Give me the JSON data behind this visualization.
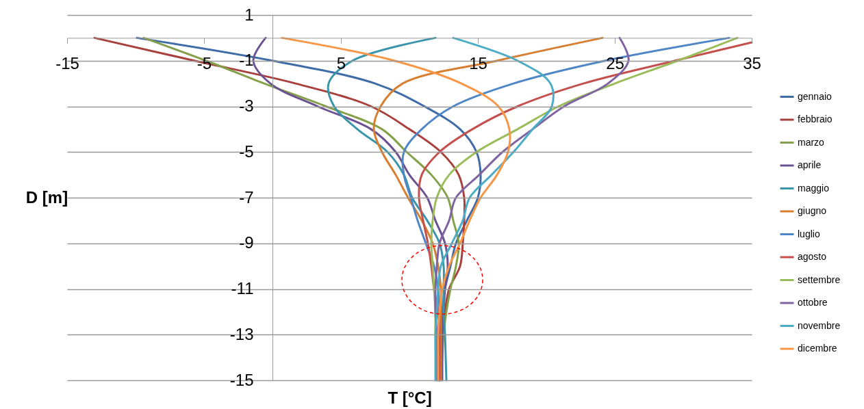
{
  "chart_data": {
    "type": "line",
    "xlabel": "T [°C]",
    "ylabel": "D [m]",
    "xlim": [
      -15,
      35
    ],
    "xticks": [
      -15,
      -5,
      5,
      15,
      25,
      35
    ],
    "ylim": [
      -15,
      1
    ],
    "yticks": [
      1,
      -1,
      -3,
      -5,
      -7,
      -9,
      -11,
      -13,
      -15
    ],
    "grid": "y",
    "legend": "right",
    "series": [
      {
        "name": "gennaio",
        "color": "#3f6ba7",
        "x": [
          -9.9,
          0,
          7.5,
          11.1,
          13.7,
          14.9,
          15.2,
          15.0,
          14.2,
          13.4,
          13.0,
          12.6,
          12.4,
          12.3,
          12.2,
          12.2
        ],
        "values": [
          0,
          -1,
          -2,
          -3,
          -4,
          -5,
          -6,
          -7,
          -8,
          -9,
          -10,
          -11,
          -12,
          -13,
          -14,
          -15
        ]
      },
      {
        "name": "febbraio",
        "color": "#a8403d",
        "x": [
          -13,
          -5.7,
          1.7,
          7.2,
          10.0,
          12.3,
          13.6,
          14.0,
          14.0,
          13.9,
          13.7,
          12.9,
          12.6,
          12.4,
          12.3,
          12.2
        ],
        "values": [
          0,
          -1,
          -2,
          -3,
          -4,
          -5,
          -6,
          -7,
          -8,
          -9,
          -10,
          -11,
          -12,
          -13,
          -14,
          -15
        ]
      },
      {
        "name": "marzo",
        "color": "#84a04a",
        "x": [
          -9.4,
          -4.85,
          -0.6,
          3.9,
          8.0,
          9.8,
          11.6,
          12.8,
          13.2,
          13.6,
          13.4,
          13.0,
          12.7,
          12.5,
          12.4,
          12.3
        ],
        "values": [
          0,
          -1,
          -2,
          -3,
          -4,
          -5,
          -6,
          -7,
          -8,
          -9,
          -10,
          -11,
          -12,
          -13,
          -14,
          -15
        ]
      },
      {
        "name": "aprile",
        "color": "#6a5191",
        "x": [
          -0.5,
          -1.4,
          -0.15,
          3.3,
          7.2,
          9.0,
          10.0,
          11.3,
          11.9,
          12.6,
          12.8,
          12.6,
          12.5,
          12.4,
          12.4,
          12.4
        ],
        "values": [
          0,
          -1,
          -2,
          -3,
          -4,
          -5,
          -6,
          -7,
          -8,
          -9,
          -10,
          -11,
          -12,
          -13,
          -14,
          -15
        ]
      },
      {
        "name": "maggio",
        "color": "#3a95ab",
        "x": [
          11.9,
          5.85,
          4.1,
          4.5,
          6.2,
          8.4,
          9.6,
          10.2,
          11.3,
          12.2,
          12.5,
          12.5,
          12.5,
          12.6,
          12.65,
          12.7
        ],
        "values": [
          0,
          -1,
          -2,
          -3,
          -4,
          -5,
          -6,
          -7,
          -8,
          -9,
          -10,
          -11,
          -12,
          -13,
          -14,
          -15
        ]
      },
      {
        "name": "giugno",
        "color": "#d67f30",
        "x": [
          24.1,
          16.4,
          9.5,
          7.9,
          7.4,
          8.0,
          9.0,
          9.9,
          10.9,
          11.7,
          12.1,
          12.3,
          12.3,
          12.3,
          12.3,
          12.3
        ],
        "values": [
          0,
          -1,
          -2,
          -3,
          -4,
          -5,
          -6,
          -7,
          -8,
          -9,
          -10,
          -11,
          -12,
          -13,
          -14,
          -15
        ]
      },
      {
        "name": "luglio",
        "color": "#4f86c6",
        "x": [
          33.35,
          24.3,
          17.6,
          13.2,
          10.9,
          9.6,
          9.6,
          10.1,
          10.6,
          11.2,
          11.8,
          12.1,
          12.2,
          12.2,
          12.2,
          12.1
        ],
        "values": [
          0,
          -1,
          -2,
          -3,
          -4,
          -5,
          -6,
          -7,
          -8,
          -9,
          -10,
          -11,
          -12,
          -13,
          -14,
          -15
        ]
      },
      {
        "name": "agosto",
        "color": "#c4504d",
        "x": [
          35,
          29.4,
          22.7,
          17.9,
          14.6,
          12.2,
          10.9,
          10.7,
          11.0,
          11.35,
          11.6,
          11.8,
          12.1,
          12.2,
          12.2,
          12.2
        ],
        "values": [
          -0.2,
          -1,
          -2,
          -3,
          -4,
          -5,
          -6,
          -7,
          -8,
          -9,
          -10,
          -11,
          -12,
          -13,
          -14,
          -15
        ]
      },
      {
        "name": "settembre",
        "color": "#9bbd59",
        "x": [
          33.95,
          29.6,
          25.0,
          20.9,
          17.9,
          14.9,
          12.9,
          12.0,
          11.7,
          11.6,
          11.7,
          11.8,
          11.9,
          11.9,
          12.0,
          12.0
        ],
        "values": [
          0,
          -1,
          -2,
          -3,
          -4,
          -5,
          -6,
          -7,
          -8,
          -9,
          -10,
          -11,
          -12,
          -13,
          -14,
          -15
        ]
      },
      {
        "name": "ottobre",
        "color": "#8064a2",
        "x": [
          25.35,
          26.0,
          24.5,
          21.3,
          19.0,
          16.8,
          15.1,
          13.4,
          12.9,
          12.2,
          12.0,
          11.9,
          11.9,
          12.0,
          12.0,
          12.0
        ],
        "values": [
          0,
          -1,
          -2,
          -3,
          -4,
          -5,
          -6,
          -7,
          -8,
          -9,
          -10,
          -11,
          -12,
          -13,
          -14,
          -15
        ]
      },
      {
        "name": "novembre",
        "color": "#4bacc6",
        "x": [
          13.2,
          17.9,
          20.3,
          20.4,
          19.0,
          17.6,
          16.0,
          14.4,
          13.9,
          13.1,
          12.3,
          12.1,
          12.0,
          11.9,
          11.9,
          11.9
        ],
        "values": [
          0,
          -1,
          -2,
          -3,
          -4,
          -5,
          -6,
          -7,
          -8,
          -9,
          -10,
          -11,
          -12,
          -13,
          -14,
          -15
        ]
      },
      {
        "name": "dicembre",
        "color": "#f79646",
        "x": [
          0.7,
          8.9,
          13.8,
          16.5,
          17.3,
          17.2,
          16.4,
          15.2,
          14.4,
          13.7,
          12.9,
          12.4,
          12.2,
          12.1,
          12.1,
          12.1
        ],
        "values": [
          0,
          -1,
          -2,
          -3,
          -4,
          -5,
          -6,
          -7,
          -8,
          -9,
          -10,
          -11,
          -12,
          -13,
          -14,
          -15
        ]
      }
    ]
  }
}
